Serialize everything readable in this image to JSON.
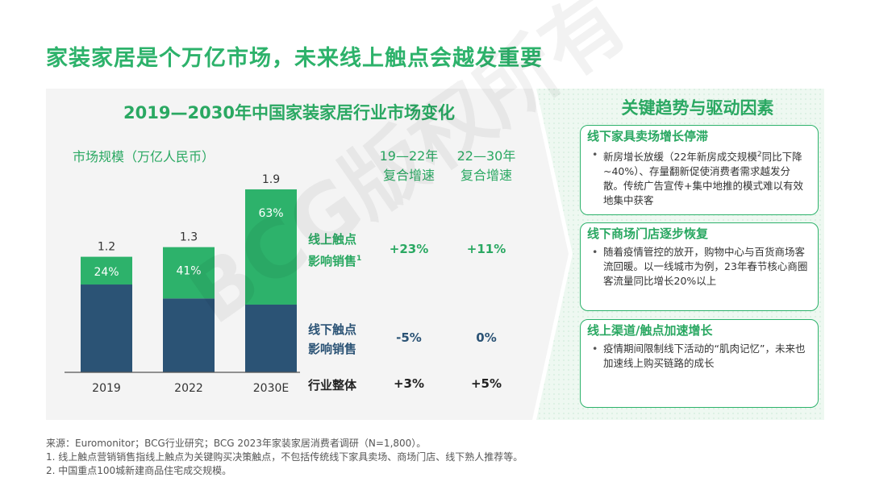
{
  "title": "家装家居是个万亿市场，未来线上触点会越发重要",
  "chart_title": "2019—2030年中国家装家居行业市场变化",
  "ylabel": "市场规模（万亿人民币）",
  "rate_headers": {
    "h1": [
      "19—22年",
      "复合增速"
    ],
    "h2": [
      "22—30年",
      "复合增速"
    ]
  },
  "row_labels": {
    "online": [
      "线上触点",
      "影响销售"
    ],
    "online_sup": "1",
    "offline": [
      "线下触点",
      "影响销售"
    ],
    "overall": "行业整体"
  },
  "rates": {
    "online": [
      "+23%",
      "+11%"
    ],
    "offline": [
      "-5%",
      "0%"
    ],
    "overall": [
      "+3%",
      "+5%"
    ]
  },
  "chart_data": {
    "type": "bar",
    "stacked": true,
    "categories": [
      "2019",
      "2022",
      "2030E"
    ],
    "totals": [
      1.2,
      1.3,
      1.9
    ],
    "series": [
      {
        "name": "线下触点影响销售",
        "values": [
          0.912,
          0.767,
          0.703
        ],
        "color": "#2b5375"
      },
      {
        "name": "线上触点影响销售",
        "values": [
          0.288,
          0.533,
          1.197
        ],
        "color": "#2db26b",
        "share_labels": [
          "24%",
          "41%",
          "63%"
        ]
      }
    ],
    "ylim": [
      0,
      1.9
    ]
  },
  "right_title": "关键趋势与驱动因素",
  "cards": [
    {
      "head": "线下家具卖场增长停滞",
      "body": [
        "新房增长放缓（22年新房成交规模",
        "同比下降~40%）、存量翻新促使消费者需求越发分散。传统广告宣传+集中地推的模式难以有效地集中获客"
      ],
      "sup": "2"
    },
    {
      "head": "线下商场门店逐步恢复",
      "body": [
        "随着疫情管控的放开，购物中心与百货商场客流回暖。以一线城市为例，23年春节核心商圈客流量同比增长20%以上"
      ]
    },
    {
      "head": "线上渠道/触点加速增长",
      "body": [
        "疫情期间限制线下活动的“肌肉记忆”，未来也加速线上购买链路的成长"
      ]
    }
  ],
  "footer": [
    "来源：Euromonitor；BCG行业研究；BCG 2023年家装家居消费者调研（N=1,800）。",
    "1. 线上触点营销销售指线上触点为关键购买决策触点，不包括传统线下家具卖场、商场门店、线下熟人推荐等。",
    "2. 中国重点100城新建商品住宅成交规模。"
  ],
  "watermark": "BCG版权所有",
  "colors": {
    "green": "#2db26b",
    "navy": "#2b5375",
    "light_green_bg": "#e6f4ea"
  }
}
